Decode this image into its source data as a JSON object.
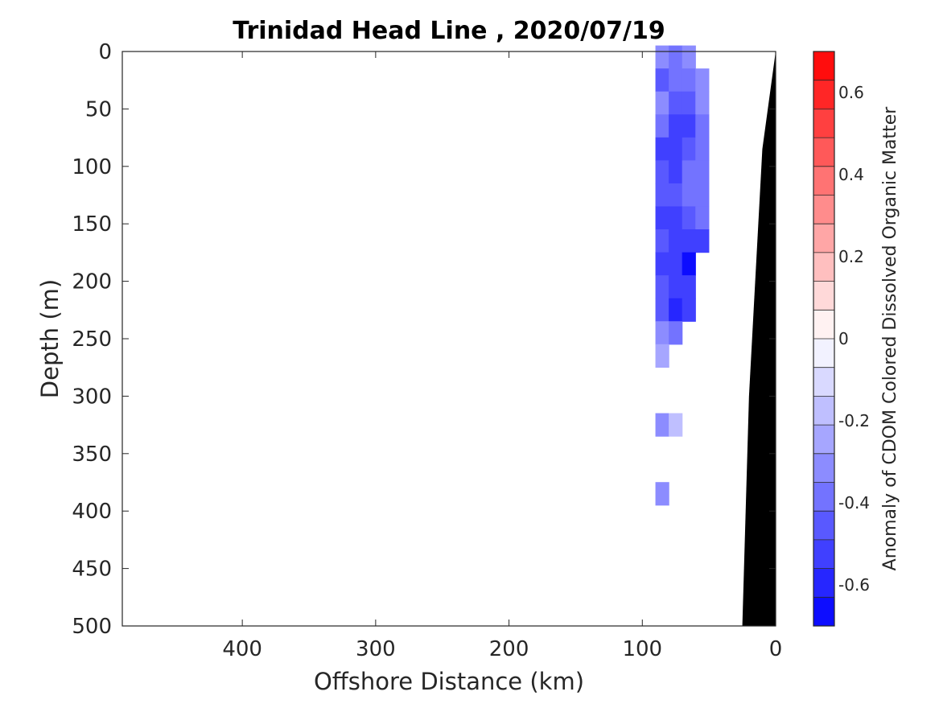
{
  "chart_data": {
    "type": "heatmap",
    "title": "Trinidad Head Line , 2020/07/19",
    "xlabel": "Offshore Distance (km)",
    "ylabel": "Depth (m)",
    "xlim": [
      490,
      0
    ],
    "ylim": [
      500,
      0
    ],
    "x_reversed": true,
    "y_reversed": true,
    "xticks": [
      "400",
      "300",
      "200",
      "100",
      "0"
    ],
    "xtick_values": [
      400,
      300,
      200,
      100,
      0
    ],
    "yticks": [
      "0",
      "50",
      "100",
      "150",
      "200",
      "250",
      "300",
      "350",
      "400",
      "450",
      "500"
    ],
    "ytick_values": [
      0,
      50,
      100,
      150,
      200,
      250,
      300,
      350,
      400,
      450,
      500
    ],
    "colorbar": {
      "label": "Anomaly of CDOM Colored Dissolved Organic Matter",
      "range": [
        -0.7,
        0.7
      ],
      "levels": 20,
      "ticks": [
        "0.6",
        "0.4",
        "0.2",
        "0",
        "-0.2",
        "-0.4",
        "-0.6"
      ],
      "tick_values": [
        0.6,
        0.4,
        0.2,
        0,
        -0.2,
        -0.4,
        -0.6
      ],
      "low_color": "#0000ff",
      "mid_color": "#ffffff",
      "high_color": "#ff0000"
    },
    "data_region": {
      "x_range_km": [
        50,
        90
      ],
      "depth_range_m": [
        0,
        390
      ],
      "value_range": [
        -0.65,
        -0.2
      ]
    },
    "cells": [
      {
        "x": 85,
        "d": 5,
        "v": -0.3
      },
      {
        "x": 75,
        "d": 5,
        "v": -0.4
      },
      {
        "x": 65,
        "d": 5,
        "v": -0.35
      },
      {
        "x": 85,
        "d": 25,
        "v": -0.45
      },
      {
        "x": 75,
        "d": 25,
        "v": -0.4
      },
      {
        "x": 65,
        "d": 25,
        "v": -0.4
      },
      {
        "x": 55,
        "d": 25,
        "v": -0.3
      },
      {
        "x": 85,
        "d": 45,
        "v": -0.35
      },
      {
        "x": 75,
        "d": 45,
        "v": -0.45
      },
      {
        "x": 65,
        "d": 45,
        "v": -0.45
      },
      {
        "x": 55,
        "d": 45,
        "v": -0.35
      },
      {
        "x": 85,
        "d": 65,
        "v": -0.4
      },
      {
        "x": 75,
        "d": 65,
        "v": -0.5
      },
      {
        "x": 65,
        "d": 65,
        "v": -0.5
      },
      {
        "x": 55,
        "d": 65,
        "v": -0.4
      },
      {
        "x": 85,
        "d": 85,
        "v": -0.5
      },
      {
        "x": 75,
        "d": 85,
        "v": -0.5
      },
      {
        "x": 65,
        "d": 85,
        "v": -0.45
      },
      {
        "x": 55,
        "d": 85,
        "v": -0.4
      },
      {
        "x": 85,
        "d": 105,
        "v": -0.45
      },
      {
        "x": 75,
        "d": 105,
        "v": -0.5
      },
      {
        "x": 65,
        "d": 105,
        "v": -0.4
      },
      {
        "x": 55,
        "d": 105,
        "v": -0.4
      },
      {
        "x": 85,
        "d": 125,
        "v": -0.45
      },
      {
        "x": 75,
        "d": 125,
        "v": -0.45
      },
      {
        "x": 65,
        "d": 125,
        "v": -0.4
      },
      {
        "x": 55,
        "d": 125,
        "v": -0.4
      },
      {
        "x": 85,
        "d": 145,
        "v": -0.5
      },
      {
        "x": 75,
        "d": 145,
        "v": -0.5
      },
      {
        "x": 65,
        "d": 145,
        "v": -0.45
      },
      {
        "x": 55,
        "d": 145,
        "v": -0.4
      },
      {
        "x": 85,
        "d": 165,
        "v": -0.45
      },
      {
        "x": 75,
        "d": 165,
        "v": -0.5
      },
      {
        "x": 65,
        "d": 165,
        "v": -0.55
      },
      {
        "x": 55,
        "d": 165,
        "v": -0.5
      },
      {
        "x": 85,
        "d": 185,
        "v": -0.5
      },
      {
        "x": 75,
        "d": 185,
        "v": -0.55
      },
      {
        "x": 65,
        "d": 185,
        "v": -0.65
      },
      {
        "x": 85,
        "d": 205,
        "v": -0.45
      },
      {
        "x": 75,
        "d": 205,
        "v": -0.55
      },
      {
        "x": 65,
        "d": 205,
        "v": -0.5
      },
      {
        "x": 85,
        "d": 225,
        "v": -0.45
      },
      {
        "x": 75,
        "d": 225,
        "v": -0.6
      },
      {
        "x": 65,
        "d": 225,
        "v": -0.5
      },
      {
        "x": 85,
        "d": 245,
        "v": -0.35
      },
      {
        "x": 75,
        "d": 245,
        "v": -0.4
      },
      {
        "x": 85,
        "d": 265,
        "v": -0.25
      },
      {
        "x": 85,
        "d": 325,
        "v": -0.3
      },
      {
        "x": 75,
        "d": 325,
        "v": -0.2
      },
      {
        "x": 85,
        "d": 385,
        "v": -0.35
      }
    ],
    "bathymetry": {
      "fill": "#000000",
      "points": [
        [
          0,
          0
        ],
        [
          10,
          85
        ],
        [
          20,
          300
        ],
        [
          25,
          500
        ],
        [
          0,
          500
        ]
      ]
    }
  }
}
